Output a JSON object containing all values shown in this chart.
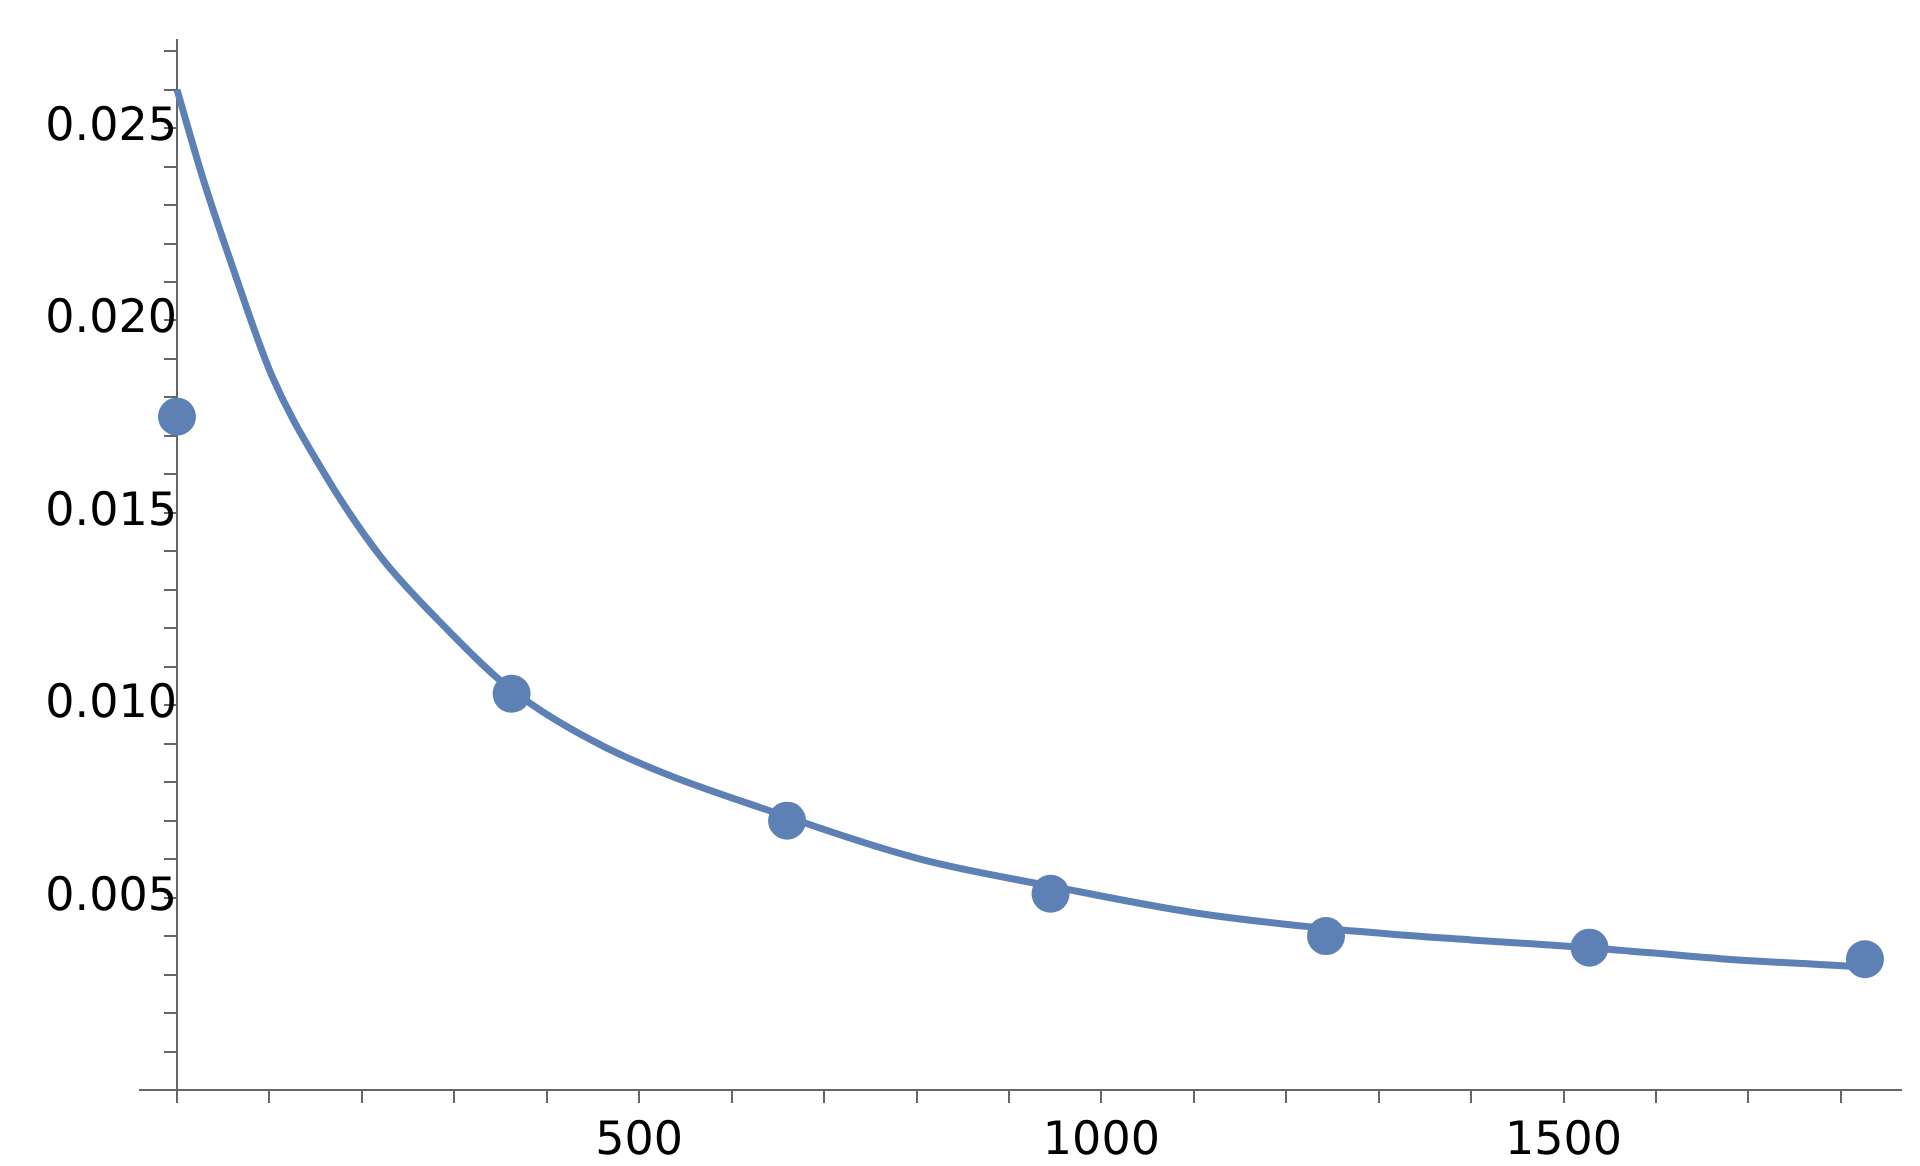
{
  "chart_data": {
    "type": "scatter",
    "xlim": [
      -40,
      1865
    ],
    "ylim": [
      0,
      0.0273
    ],
    "xticks": [
      {
        "value": 0,
        "label": null
      },
      {
        "value": 100,
        "label": null
      },
      {
        "value": 200,
        "label": null
      },
      {
        "value": 300,
        "label": null
      },
      {
        "value": 400,
        "label": null
      },
      500,
      {
        "value": 600,
        "label": null
      },
      {
        "value": 700,
        "label": null
      },
      {
        "value": 800,
        "label": null
      },
      {
        "value": 900,
        "label": null
      },
      1000,
      {
        "value": 1100,
        "label": null
      },
      {
        "value": 1200,
        "label": null
      },
      {
        "value": 1300,
        "label": null
      },
      {
        "value": 1400,
        "label": null
      },
      1500,
      {
        "value": 1600,
        "label": null
      },
      {
        "value": 1700,
        "label": null
      },
      {
        "value": 1800,
        "label": null
      }
    ],
    "yticks": [
      {
        "value": 0.001,
        "label": null
      },
      {
        "value": 0.002,
        "label": null
      },
      {
        "value": 0.003,
        "label": null
      },
      {
        "value": 0.004,
        "label": null
      },
      {
        "value": 0.005,
        "label": "0.005"
      },
      {
        "value": 0.006,
        "label": null
      },
      {
        "value": 0.007,
        "label": null
      },
      {
        "value": 0.008,
        "label": null
      },
      {
        "value": 0.009,
        "label": null
      },
      {
        "value": 0.01,
        "label": "0.010"
      },
      {
        "value": 0.011,
        "label": null
      },
      {
        "value": 0.012,
        "label": null
      },
      {
        "value": 0.013,
        "label": null
      },
      {
        "value": 0.014,
        "label": null
      },
      {
        "value": 0.015,
        "label": "0.015"
      },
      {
        "value": 0.016,
        "label": null
      },
      {
        "value": 0.017,
        "label": null
      },
      {
        "value": 0.018,
        "label": null
      },
      {
        "value": 0.019,
        "label": null
      },
      {
        "value": 0.02,
        "label": "0.020"
      },
      {
        "value": 0.021,
        "label": null
      },
      {
        "value": 0.022,
        "label": null
      },
      {
        "value": 0.023,
        "label": null
      },
      {
        "value": 0.024,
        "label": null
      },
      {
        "value": 0.025,
        "label": "0.025"
      },
      {
        "value": 0.026,
        "label": null
      },
      {
        "value": 0.027,
        "label": null
      }
    ],
    "grid": false,
    "legend": false,
    "series": [
      {
        "type": "line",
        "color": "#5e81b5",
        "marker": "none",
        "line_style": "solid",
        "x": [
          0,
          28,
          60,
          102,
          155,
          219,
          283,
          362,
          464,
          660,
          804,
          945,
          1102,
          1243,
          1400,
          1528,
          1677,
          1826
        ],
        "values": [
          0.026,
          0.0237,
          0.0214,
          0.0186,
          0.0162,
          0.0139,
          0.0122,
          0.0104,
          0.0089,
          0.0071,
          0.006,
          0.0053,
          0.0046,
          0.0042,
          0.0039,
          0.0037,
          0.0034,
          0.0032
        ]
      },
      {
        "color": "#5e81b5",
        "marker": "circle",
        "x": [
          0,
          362,
          660,
          945,
          1243,
          1528,
          1826
        ],
        "values": [
          0.0175,
          0.0103,
          0.007,
          0.0051,
          0.004,
          0.0037,
          0.0034
        ]
      }
    ]
  }
}
